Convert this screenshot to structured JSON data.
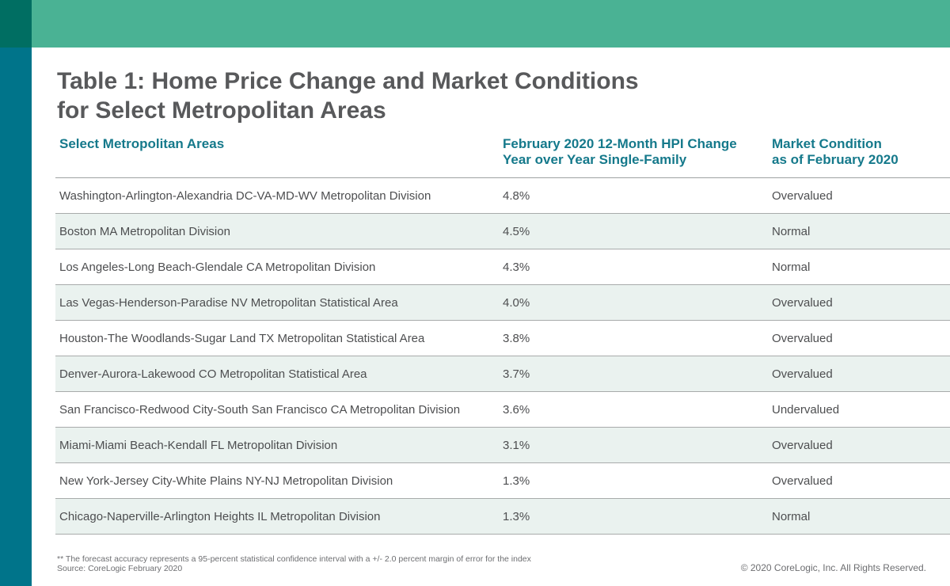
{
  "page": {
    "title_line1": "Table 1: Home Price Change and Market Conditions",
    "title_line2": "for Select Metropolitan Areas"
  },
  "table": {
    "headers": [
      {
        "line1": "Select Metropolitan Areas",
        "line2": ""
      },
      {
        "line1": "February 2020 12-Month HPI Change",
        "line2": "Year over Year Single-Family"
      },
      {
        "line1": "Market Condition",
        "line2": "as of February 2020"
      }
    ],
    "rows": [
      {
        "area": "Washington-Arlington-Alexandria DC-VA-MD-WV Metropolitan Division",
        "hpi": "4.8%",
        "condition": "Overvalued"
      },
      {
        "area": "Boston MA Metropolitan Division",
        "hpi": "4.5%",
        "condition": "Normal"
      },
      {
        "area": "Los Angeles-Long Beach-Glendale CA Metropolitan Division",
        "hpi": "4.3%",
        "condition": "Normal"
      },
      {
        "area": "Las Vegas-Henderson-Paradise NV Metropolitan Statistical Area",
        "hpi": "4.0%",
        "condition": "Overvalued"
      },
      {
        "area": "Houston-The Woodlands-Sugar Land TX Metropolitan Statistical Area",
        "hpi": "3.8%",
        "condition": "Overvalued"
      },
      {
        "area": "Denver-Aurora-Lakewood CO Metropolitan Statistical Area",
        "hpi": "3.7%",
        "condition": "Overvalued"
      },
      {
        "area": "San Francisco-Redwood City-South San Francisco CA Metropolitan Division",
        "hpi": "3.6%",
        "condition": "Undervalued"
      },
      {
        "area": "Miami-Miami Beach-Kendall FL Metropolitan Division",
        "hpi": "3.1%",
        "condition": "Overvalued"
      },
      {
        "area": "New York-Jersey City-White Plains NY-NJ Metropolitan Division",
        "hpi": "1.3%",
        "condition": "Overvalued"
      },
      {
        "area": "Chicago-Naperville-Arlington Heights IL Metropolitan Division",
        "hpi": "1.3%",
        "condition": "Normal"
      }
    ]
  },
  "footer": {
    "footnote": "** The forecast accuracy represents a 95-percent statistical confidence interval with a +/- 2.0 percent margin of error for the index",
    "source": "Source: CoreLogic February 2020",
    "copyright": "© 2020 CoreLogic, Inc. All Rights Reserved."
  },
  "colors": {
    "corner_square": "#006E62",
    "top_band": "#4AB294",
    "left_stripe": "#00748A",
    "header_teal": "#15798B",
    "row_shade": "#EAF2EF",
    "title_gray": "#58595B",
    "body_gray": "#4D4E50",
    "muted_gray": "#6D6E71"
  },
  "chart_data": {
    "type": "table",
    "title": "Table 1: Home Price Change and Market Conditions for Select Metropolitan Areas",
    "columns": [
      "Select Metropolitan Areas",
      "February 2020 12-Month HPI Change Year over Year Single-Family",
      "Market Condition as of February 2020"
    ],
    "categories": [
      "Washington-Arlington-Alexandria DC-VA-MD-WV Metropolitan Division",
      "Boston MA Metropolitan Division",
      "Los Angeles-Long Beach-Glendale CA Metropolitan Division",
      "Las Vegas-Henderson-Paradise NV Metropolitan Statistical Area",
      "Houston-The Woodlands-Sugar Land TX Metropolitan Statistical Area",
      "Denver-Aurora-Lakewood CO Metropolitan Statistical Area",
      "San Francisco-Redwood City-South San Francisco CA Metropolitan Division",
      "Miami-Miami Beach-Kendall FL Metropolitan Division",
      "New York-Jersey City-White Plains NY-NJ Metropolitan Division",
      "Chicago-Naperville-Arlington Heights IL Metropolitan Division"
    ],
    "hpi_change_pct": [
      4.8,
      4.5,
      4.3,
      4.0,
      3.8,
      3.7,
      3.6,
      3.1,
      1.3,
      1.3
    ],
    "market_condition": [
      "Overvalued",
      "Normal",
      "Normal",
      "Overvalued",
      "Overvalued",
      "Overvalued",
      "Undervalued",
      "Overvalued",
      "Overvalued",
      "Normal"
    ]
  }
}
